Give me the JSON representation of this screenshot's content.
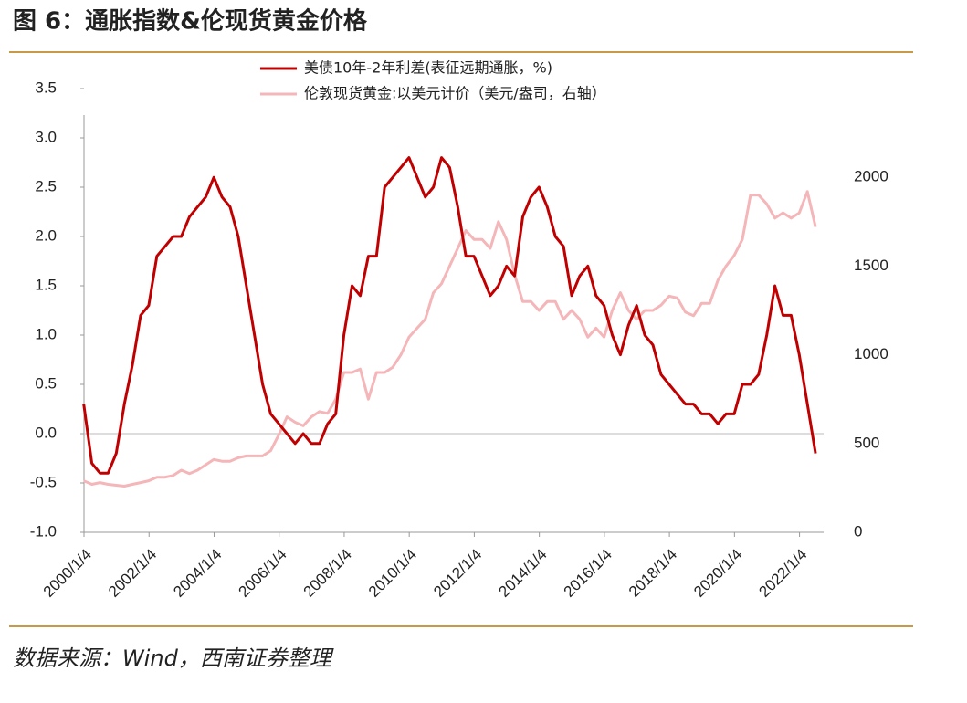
{
  "chart_data": {
    "type": "line",
    "title": "图 6：通胀指数&伦现货黄金价格",
    "source": "数据来源：Wind，西南证券整理",
    "x": [
      "2000-01",
      "2000-04",
      "2000-07",
      "2000-10",
      "2001-01",
      "2001-04",
      "2001-07",
      "2001-10",
      "2002-01",
      "2002-04",
      "2002-07",
      "2002-10",
      "2003-01",
      "2003-04",
      "2003-07",
      "2003-10",
      "2004-01",
      "2004-04",
      "2004-07",
      "2004-10",
      "2005-01",
      "2005-04",
      "2005-07",
      "2005-10",
      "2006-01",
      "2006-04",
      "2006-07",
      "2006-10",
      "2007-01",
      "2007-04",
      "2007-07",
      "2007-10",
      "2008-01",
      "2008-04",
      "2008-07",
      "2008-10",
      "2009-01",
      "2009-04",
      "2009-07",
      "2009-10",
      "2010-01",
      "2010-04",
      "2010-07",
      "2010-10",
      "2011-01",
      "2011-04",
      "2011-07",
      "2011-10",
      "2012-01",
      "2012-04",
      "2012-07",
      "2012-10",
      "2013-01",
      "2013-04",
      "2013-07",
      "2013-10",
      "2014-01",
      "2014-04",
      "2014-07",
      "2014-10",
      "2015-01",
      "2015-04",
      "2015-07",
      "2015-10",
      "2016-01",
      "2016-04",
      "2016-07",
      "2016-10",
      "2017-01",
      "2017-04",
      "2017-07",
      "2017-10",
      "2018-01",
      "2018-04",
      "2018-07",
      "2018-10",
      "2019-01",
      "2019-04",
      "2019-07",
      "2019-10",
      "2020-01",
      "2020-04",
      "2020-07",
      "2020-10",
      "2021-01",
      "2021-04",
      "2021-07",
      "2021-10",
      "2022-01",
      "2022-04",
      "2022-07"
    ],
    "series": [
      {
        "name": "伦敦现货黄金:以美元计价（美元/盎司，右轴）",
        "color": "#f4b6b8",
        "axis": "y2",
        "values": [
          290,
          270,
          280,
          270,
          265,
          260,
          270,
          280,
          290,
          310,
          310,
          320,
          350,
          330,
          350,
          380,
          410,
          400,
          400,
          420,
          430,
          430,
          430,
          460,
          550,
          650,
          620,
          600,
          650,
          680,
          670,
          750,
          900,
          900,
          920,
          750,
          900,
          900,
          930,
          1000,
          1100,
          1150,
          1200,
          1350,
          1400,
          1500,
          1600,
          1700,
          1650,
          1650,
          1600,
          1750,
          1650,
          1450,
          1300,
          1300,
          1250,
          1300,
          1300,
          1200,
          1250,
          1200,
          1100,
          1150,
          1100,
          1250,
          1350,
          1250,
          1200,
          1250,
          1250,
          1280,
          1330,
          1320,
          1240,
          1220,
          1290,
          1290,
          1420,
          1500,
          1560,
          1650,
          1900,
          1900,
          1850,
          1770,
          1800,
          1770,
          1800,
          1920,
          1720
        ]
      },
      {
        "name": "美债10年-2年利差(表征远期通胀，%)",
        "color": "#c00000",
        "values": [
          0.3,
          -0.3,
          -0.4,
          -0.4,
          -0.2,
          0.3,
          0.7,
          1.2,
          1.3,
          1.8,
          1.9,
          2.0,
          2.0,
          2.2,
          2.3,
          2.4,
          2.6,
          2.4,
          2.3,
          2.0,
          1.5,
          1.0,
          0.5,
          0.2,
          0.1,
          0.0,
          -0.1,
          0.0,
          -0.1,
          -0.1,
          0.1,
          0.2,
          1.0,
          1.5,
          1.4,
          1.8,
          1.8,
          2.5,
          2.6,
          2.7,
          2.8,
          2.6,
          2.4,
          2.5,
          2.8,
          2.7,
          2.3,
          1.8,
          1.8,
          1.6,
          1.4,
          1.5,
          1.7,
          1.6,
          2.2,
          2.4,
          2.5,
          2.3,
          2.0,
          1.9,
          1.4,
          1.6,
          1.7,
          1.4,
          1.3,
          1.0,
          0.8,
          1.1,
          1.3,
          1.0,
          0.9,
          0.6,
          0.5,
          0.4,
          0.3,
          0.3,
          0.2,
          0.2,
          0.1,
          0.2,
          0.2,
          0.5,
          0.5,
          0.6,
          1.0,
          1.5,
          1.2,
          1.2,
          0.8,
          0.3,
          -0.2
        ]
      }
    ],
    "xlim": [
      "2000-01-04",
      "2022-10"
    ],
    "xticks": [
      {
        "value": "2000-01-04",
        "label": "2000/1/4"
      },
      {
        "value": "2002-01-04",
        "label": "2002/1/4"
      },
      {
        "value": "2004-01-04",
        "label": "2004/1/4"
      },
      {
        "value": "2006-01-04",
        "label": "2006/1/4"
      },
      {
        "value": "2008-01-04",
        "label": "2008/1/4"
      },
      {
        "value": "2010-01-04",
        "label": "2010/1/4"
      },
      {
        "value": "2012-01-04",
        "label": "2012/1/4"
      },
      {
        "value": "2014-01-04",
        "label": "2014/1/4"
      },
      {
        "value": "2016-01-04",
        "label": "2016/1/4"
      },
      {
        "value": "2018-01-04",
        "label": "2018/1/4"
      },
      {
        "value": "2020-01-04",
        "label": "2020/1/4"
      },
      {
        "value": "2022-01-04",
        "label": "2022/1/4"
      }
    ],
    "ylim": [
      -1,
      3.5
    ],
    "yticks": [
      {
        "value": -1,
        "label": "-1.0"
      },
      {
        "value": -0.5,
        "label": "-0.5"
      },
      {
        "value": 0,
        "label": "0.0"
      },
      {
        "value": 0.5,
        "label": "0.5"
      },
      {
        "value": 1,
        "label": "1.0"
      },
      {
        "value": 1.5,
        "label": "1.5"
      },
      {
        "value": 2,
        "label": "2.0"
      },
      {
        "value": 2.5,
        "label": "2.5"
      },
      {
        "value": 3,
        "label": "3.0"
      },
      {
        "value": 3.5,
        "label": "3.5"
      }
    ],
    "y2lim": [
      0,
      2500
    ],
    "y2ticks": [
      0,
      500,
      1000,
      1500,
      2000
    ]
  }
}
